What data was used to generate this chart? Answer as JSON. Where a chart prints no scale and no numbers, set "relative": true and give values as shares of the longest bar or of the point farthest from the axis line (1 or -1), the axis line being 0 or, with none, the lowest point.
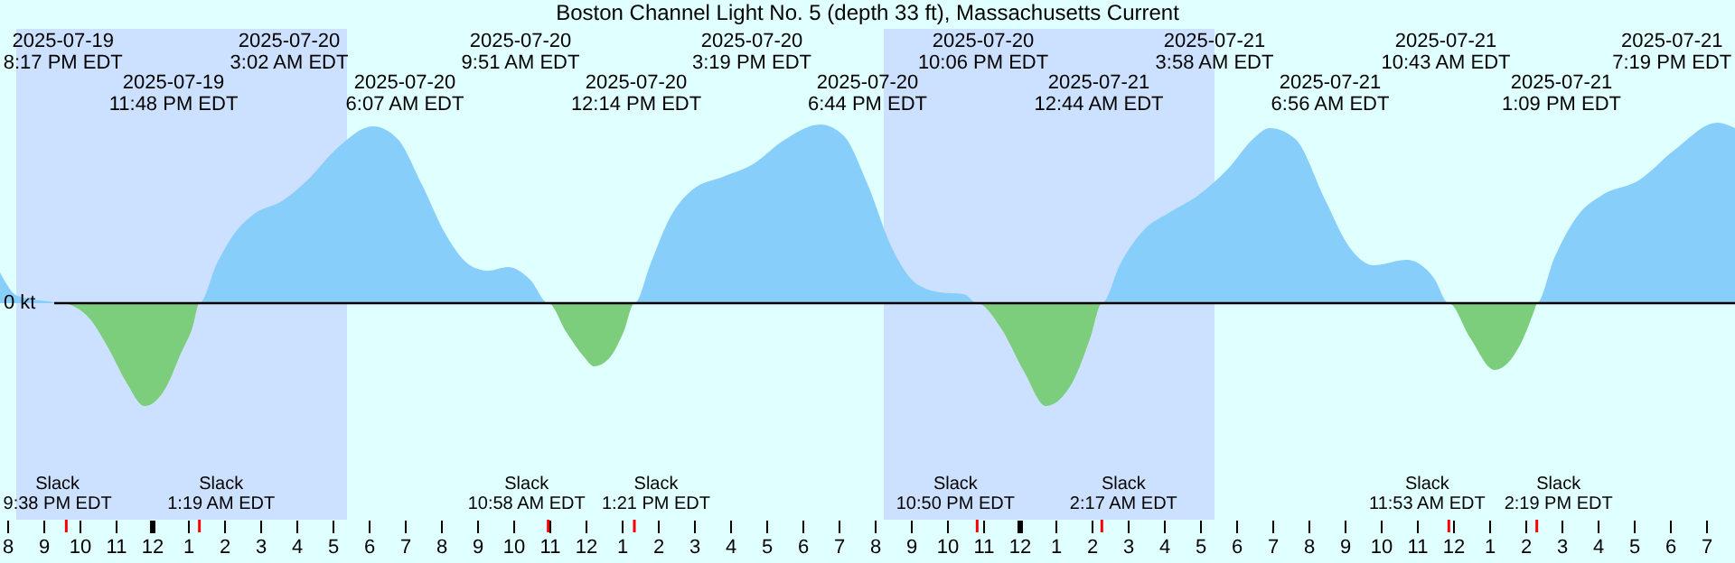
{
  "chart_data": {
    "type": "area",
    "title": "Boston Channel Light No. 5 (depth 33 ft), Massachusetts Current",
    "relative": true,
    "x": [
      "2025-07-19T19:48",
      "2025-07-19T20:17",
      "2025-07-19T21:08",
      "2025-07-19T21:38",
      "2025-07-19T22:18",
      "2025-07-19T22:48",
      "2025-07-19T23:18",
      "2025-07-19T23:48",
      "2025-07-20T00:23",
      "2025-07-20T00:48",
      "2025-07-20T01:08",
      "2025-07-20T01:19",
      "2025-07-20T01:48",
      "2025-07-20T02:18",
      "2025-07-20T02:48",
      "2025-07-20T03:38",
      "2025-07-20T04:18",
      "2025-07-20T05:08",
      "2025-07-20T06:07",
      "2025-07-20T06:48",
      "2025-07-20T07:28",
      "2025-07-20T08:08",
      "2025-07-20T08:48",
      "2025-07-20T09:18",
      "2025-07-20T09:51",
      "2025-07-20T10:28",
      "2025-07-20T10:58",
      "2025-07-20T11:28",
      "2025-07-20T11:58",
      "2025-07-20T12:14",
      "2025-07-20T12:38",
      "2025-07-20T13:03",
      "2025-07-20T13:21",
      "2025-07-20T13:48",
      "2025-07-20T14:18",
      "2025-07-20T14:58",
      "2025-07-20T15:48",
      "2025-07-20T16:38",
      "2025-07-20T17:28",
      "2025-07-20T18:30",
      "2025-07-20T19:08",
      "2025-07-20T19:48",
      "2025-07-20T20:28",
      "2025-07-20T21:08",
      "2025-07-20T21:48",
      "2025-07-20T22:28",
      "2025-07-20T22:50",
      "2025-07-20T23:28",
      "2025-07-21T00:08",
      "2025-07-21T00:44",
      "2025-07-21T01:28",
      "2025-07-21T01:58",
      "2025-07-21T02:17",
      "2025-07-21T02:48",
      "2025-07-21T03:28",
      "2025-07-21T04:08",
      "2025-07-21T04:58",
      "2025-07-21T05:48",
      "2025-07-21T06:28",
      "2025-07-21T06:56",
      "2025-07-21T07:38",
      "2025-07-21T08:28",
      "2025-07-21T09:08",
      "2025-07-21T09:48",
      "2025-07-21T10:43",
      "2025-07-21T11:28",
      "2025-07-21T11:53",
      "2025-07-21T12:28",
      "2025-07-21T13:09",
      "2025-07-21T13:53",
      "2025-07-21T14:19",
      "2025-07-21T14:48",
      "2025-07-21T15:28",
      "2025-07-21T16:08",
      "2025-07-21T17:08",
      "2025-07-21T18:08",
      "2025-07-21T19:19",
      "2025-07-21T19:48"
    ],
    "series": [
      {
        "color": "#87cefa",
        "values": [
          0.17,
          0.04,
          0.01,
          0,
          null,
          null,
          null,
          null,
          null,
          null,
          null,
          0,
          0.22,
          0.39,
          0.49,
          0.57,
          0.68,
          0.86,
          0.98,
          0.91,
          0.66,
          0.38,
          0.21,
          0.18,
          0.2,
          0.13,
          0,
          null,
          null,
          null,
          null,
          null,
          0,
          0.22,
          0.46,
          0.63,
          0.7,
          0.77,
          0.9,
          0.99,
          0.93,
          0.66,
          0.31,
          0.11,
          0.06,
          0.05,
          0,
          null,
          null,
          null,
          null,
          null,
          0,
          0.22,
          0.41,
          0.5,
          0.6,
          0.75,
          0.91,
          0.97,
          0.91,
          0.57,
          0.31,
          0.21,
          0.24,
          0.14,
          0,
          null,
          null,
          null,
          0,
          0.25,
          0.49,
          0.6,
          0.68,
          0.85,
          1,
          0.97
        ]
      },
      {
        "color": "#7ccd7c",
        "values": [
          null,
          null,
          null,
          0,
          -0.09,
          -0.25,
          -0.44,
          -0.57,
          -0.47,
          -0.28,
          -0.13,
          0,
          null,
          null,
          null,
          null,
          null,
          null,
          null,
          null,
          null,
          null,
          null,
          null,
          null,
          null,
          0,
          -0.16,
          -0.3,
          -0.35,
          -0.31,
          -0.16,
          0,
          null,
          null,
          null,
          null,
          null,
          null,
          null,
          null,
          null,
          null,
          null,
          null,
          null,
          0,
          -0.13,
          -0.38,
          -0.57,
          -0.44,
          -0.19,
          0,
          null,
          null,
          null,
          null,
          null,
          null,
          null,
          null,
          null,
          null,
          null,
          null,
          null,
          0,
          -0.19,
          -0.37,
          -0.22,
          0,
          null,
          null,
          null,
          null,
          null,
          null,
          null
        ]
      }
    ],
    "xlim": [
      "2025-07-19T19:48",
      "2025-07-21T19:48"
    ],
    "xticks": [
      {
        "value": "2025-07-19T20:00",
        "label": "8"
      },
      {
        "value": "2025-07-19T21:00",
        "label": "9"
      },
      {
        "value": "2025-07-19T22:00",
        "label": "10"
      },
      {
        "value": "2025-07-19T23:00",
        "label": "11"
      },
      {
        "value": "2025-07-20T00:00",
        "label": "12"
      },
      {
        "value": "2025-07-20T01:00",
        "label": "1"
      },
      {
        "value": "2025-07-20T02:00",
        "label": "2"
      },
      {
        "value": "2025-07-20T03:00",
        "label": "3"
      },
      {
        "value": "2025-07-20T04:00",
        "label": "4"
      },
      {
        "value": "2025-07-20T05:00",
        "label": "5"
      },
      {
        "value": "2025-07-20T06:00",
        "label": "6"
      },
      {
        "value": "2025-07-20T07:00",
        "label": "7"
      },
      {
        "value": "2025-07-20T08:00",
        "label": "8"
      },
      {
        "value": "2025-07-20T09:00",
        "label": "9"
      },
      {
        "value": "2025-07-20T10:00",
        "label": "10"
      },
      {
        "value": "2025-07-20T11:00",
        "label": "11"
      },
      {
        "value": "2025-07-20T12:00",
        "label": "12"
      },
      {
        "value": "2025-07-20T13:00",
        "label": "1"
      },
      {
        "value": "2025-07-20T14:00",
        "label": "2"
      },
      {
        "value": "2025-07-20T15:00",
        "label": "3"
      },
      {
        "value": "2025-07-20T16:00",
        "label": "4"
      },
      {
        "value": "2025-07-20T17:00",
        "label": "5"
      },
      {
        "value": "2025-07-20T18:00",
        "label": "6"
      },
      {
        "value": "2025-07-20T19:00",
        "label": "7"
      },
      {
        "value": "2025-07-20T20:00",
        "label": "8"
      },
      {
        "value": "2025-07-20T21:00",
        "label": "9"
      },
      {
        "value": "2025-07-20T22:00",
        "label": "10"
      },
      {
        "value": "2025-07-20T23:00",
        "label": "11"
      },
      {
        "value": "2025-07-21T00:00",
        "label": "12"
      },
      {
        "value": "2025-07-21T01:00",
        "label": "1"
      },
      {
        "value": "2025-07-21T02:00",
        "label": "2"
      },
      {
        "value": "2025-07-21T03:00",
        "label": "3"
      },
      {
        "value": "2025-07-21T04:00",
        "label": "4"
      },
      {
        "value": "2025-07-21T05:00",
        "label": "5"
      },
      {
        "value": "2025-07-21T06:00",
        "label": "6"
      },
      {
        "value": "2025-07-21T07:00",
        "label": "7"
      },
      {
        "value": "2025-07-21T08:00",
        "label": "8"
      },
      {
        "value": "2025-07-21T09:00",
        "label": "9"
      },
      {
        "value": "2025-07-21T10:00",
        "label": "10"
      },
      {
        "value": "2025-07-21T11:00",
        "label": "11"
      },
      {
        "value": "2025-07-21T12:00",
        "label": "12"
      },
      {
        "value": "2025-07-21T13:00",
        "label": "1"
      },
      {
        "value": "2025-07-21T14:00",
        "label": "2"
      },
      {
        "value": "2025-07-21T15:00",
        "label": "3"
      },
      {
        "value": "2025-07-21T16:00",
        "label": "4"
      },
      {
        "value": "2025-07-21T17:00",
        "label": "5"
      },
      {
        "value": "2025-07-21T18:00",
        "label": "6"
      },
      {
        "value": "2025-07-21T19:00",
        "label": "7"
      }
    ],
    "bands": [
      {
        "axis": "x",
        "from": "2025-07-19T20:15",
        "to": "2025-07-20T05:24",
        "color": "#cce0ff"
      },
      {
        "axis": "x",
        "from": "2025-07-20T20:15",
        "to": "2025-07-21T05:24",
        "color": "#cce0ff"
      }
    ],
    "ref_lines": [
      {
        "axis": "y",
        "value": 0,
        "label": "0 kt",
        "color": "#000000"
      },
      {
        "axis": "x",
        "value": "2025-07-19T21:38",
        "label": "Slack\n9:38 PM EDT",
        "color": "#ff0000"
      },
      {
        "axis": "x",
        "value": "2025-07-20T01:19",
        "label": "Slack\n1:19 AM EDT",
        "color": "#ff0000"
      },
      {
        "axis": "x",
        "value": "2025-07-20T10:58",
        "label": "Slack\n10:58 AM EDT",
        "color": "#ff0000"
      },
      {
        "axis": "x",
        "value": "2025-07-20T13:21",
        "label": "Slack\n1:21 PM EDT",
        "color": "#ff0000"
      },
      {
        "axis": "x",
        "value": "2025-07-20T22:50",
        "label": "Slack\n10:50 PM EDT",
        "color": "#ff0000"
      },
      {
        "axis": "x",
        "value": "2025-07-21T02:17",
        "label": "Slack\n2:17 AM EDT",
        "color": "#ff0000"
      },
      {
        "axis": "x",
        "value": "2025-07-21T11:53",
        "label": "Slack\n11:53 AM EDT",
        "color": "#ff0000"
      },
      {
        "axis": "x",
        "value": "2025-07-21T14:19",
        "label": "Slack\n2:19 PM EDT",
        "color": "#ff0000"
      }
    ],
    "annotations": [
      "2025-07-19\n8:17 PM EDT",
      "2025-07-19\n11:48 PM EDT",
      "2025-07-20\n3:02 AM EDT",
      "2025-07-20\n6:07 AM EDT",
      "2025-07-20\n9:51 AM EDT",
      "2025-07-20\n12:14 PM EDT",
      "2025-07-20\n3:19 PM EDT",
      "2025-07-20\n6:44 PM EDT",
      "2025-07-20\n10:06 PM EDT",
      "2025-07-21\n12:44 AM EDT",
      "2025-07-21\n3:58 AM EDT",
      "2025-07-21\n6:56 AM EDT",
      "2025-07-21\n10:43 AM EDT",
      "2025-07-21\n1:09 PM EDT",
      "2025-07-21\n7:19 PM EDT"
    ]
  }
}
